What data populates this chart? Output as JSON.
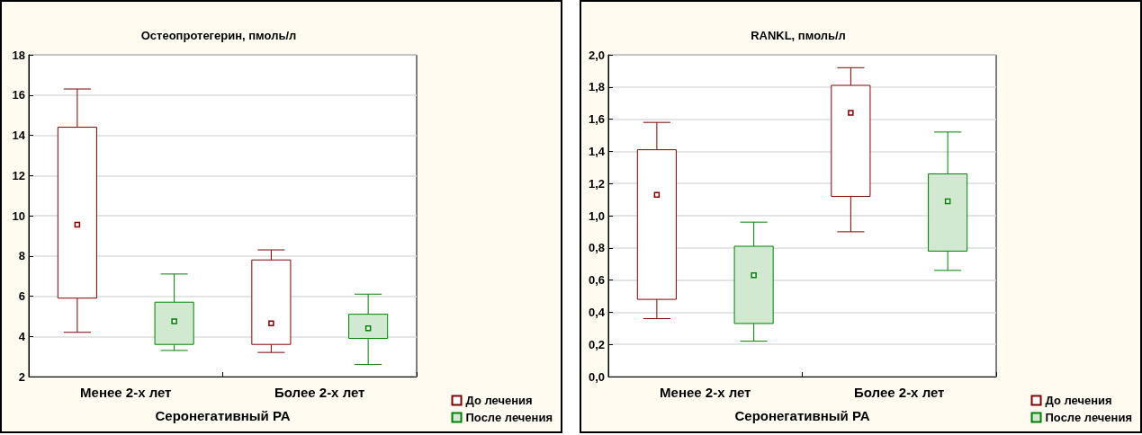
{
  "chart_data": [
    {
      "type": "box",
      "title": "Остеопротегерин, пмоль/л",
      "xlabel": "Серонегативный РА",
      "categories": [
        "Менее 2-х лет",
        "Более 2-х лет"
      ],
      "ylim": [
        2,
        18
      ],
      "yticks": [
        2,
        4,
        6,
        8,
        10,
        12,
        14,
        16,
        18
      ],
      "grid": "y",
      "legend": "bottom right",
      "marker": "square",
      "series": [
        {
          "name": "До лечения",
          "color": "#800000",
          "boxes": [
            {
              "low": 4.2,
              "q1": 5.9,
              "median": 9.55,
              "q3": 14.4,
              "high": 16.3
            },
            {
              "low": 3.2,
              "q1": 3.6,
              "median": 4.65,
              "q3": 7.8,
              "high": 8.3
            }
          ]
        },
        {
          "name": "После лечения",
          "color": "#008000",
          "boxes": [
            {
              "low": 3.3,
              "q1": 3.6,
              "median": 4.75,
              "q3": 5.7,
              "high": 7.1
            },
            {
              "low": 2.6,
              "q1": 3.9,
              "median": 4.4,
              "q3": 5.1,
              "high": 6.1
            }
          ]
        }
      ]
    },
    {
      "type": "box",
      "title": "RANKL, пмоль/л",
      "xlabel": "Серонегативный РА",
      "categories": [
        "Менее 2-х лет",
        "Более 2-х лет"
      ],
      "ylim": [
        0,
        2
      ],
      "yticks": [
        {
          "value": 0,
          "label": "0,0"
        },
        {
          "value": 0.2,
          "label": "0,2"
        },
        {
          "value": 0.4,
          "label": "0,4"
        },
        {
          "value": 0.6,
          "label": "0,6"
        },
        {
          "value": 0.8,
          "label": "0,8"
        },
        {
          "value": 1,
          "label": "1,0"
        },
        {
          "value": 1.2,
          "label": "1,2"
        },
        {
          "value": 1.4,
          "label": "1,4"
        },
        {
          "value": 1.6,
          "label": "1,6"
        },
        {
          "value": 1.8,
          "label": "1,8"
        },
        {
          "value": 2,
          "label": "2,0"
        }
      ],
      "grid": "y",
      "legend": "bottom right",
      "marker": "square",
      "series": [
        {
          "name": "До лечения",
          "color": "#800000",
          "boxes": [
            {
              "low": 0.36,
              "q1": 0.48,
              "median": 1.13,
              "q3": 1.41,
              "high": 1.58
            },
            {
              "low": 0.9,
              "q1": 1.12,
              "median": 1.64,
              "q3": 1.81,
              "high": 1.92
            }
          ]
        },
        {
          "name": "После лечения",
          "color": "#008000",
          "boxes": [
            {
              "low": 0.22,
              "q1": 0.33,
              "median": 0.63,
              "q3": 0.81,
              "high": 0.96
            },
            {
              "low": 0.66,
              "q1": 0.78,
              "median": 1.09,
              "q3": 1.26,
              "high": 1.52
            }
          ]
        }
      ]
    }
  ]
}
